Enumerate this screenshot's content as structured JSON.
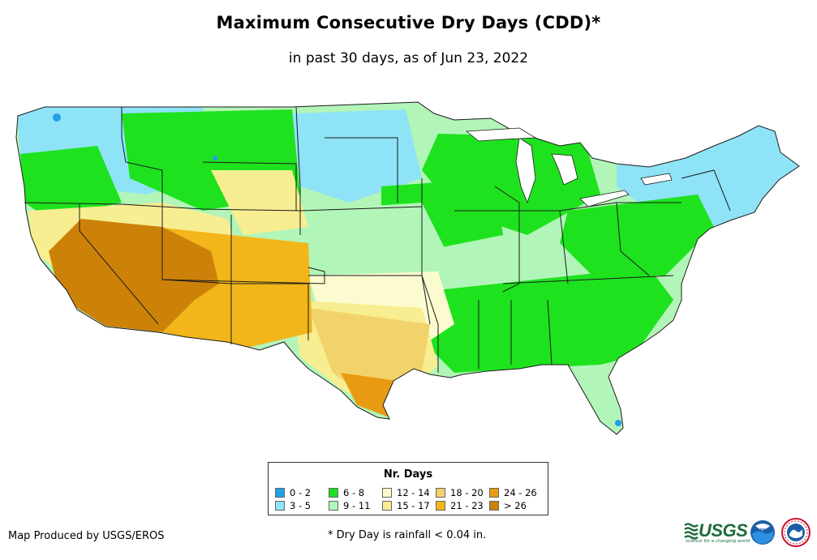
{
  "title": "Maximum Consecutive Dry Days (CDD)*",
  "subtitle": "in past 30 days, as of Jun 23, 2022",
  "map": {
    "region": "Contiguous United States",
    "layer": "Maximum consecutive dry days",
    "colors": {
      "c0_2": "#1f9fe8",
      "c3_5": "#8fe3f7",
      "c6_8": "#1ee21e",
      "c9_11": "#b2f5b8",
      "c12_14": "#fbfbcf",
      "c15_17": "#f7ee91",
      "c18_20": "#f2d36b",
      "c21_23": "#f2b61a",
      "c24_26": "#e89b12",
      "c26plus": "#cc8208",
      "border": "#1a1a1a"
    }
  },
  "legend": {
    "title": "Nr. Days",
    "items": [
      {
        "label": "0 - 2",
        "color": "#1f9fe8"
      },
      {
        "label": "6 - 8",
        "color": "#1ee21e"
      },
      {
        "label": "12 - 14",
        "color": "#fbfbcf"
      },
      {
        "label": "18 - 20",
        "color": "#f2d36b"
      },
      {
        "label": "24 - 26",
        "color": "#e89b12"
      },
      {
        "label": "3 - 5",
        "color": "#8fe3f7"
      },
      {
        "label": "9 - 11",
        "color": "#b2f5b8"
      },
      {
        "label": "15 - 17",
        "color": "#f7ee91"
      },
      {
        "label": "21 - 23",
        "color": "#f2b61a"
      },
      {
        "label": "> 26",
        "color": "#cc8208"
      }
    ]
  },
  "footer": {
    "credit": "Map Produced by USGS/EROS",
    "footnote": "* Dry Day is rainfall < 0.04 in."
  },
  "logos": {
    "usgs": "USGS",
    "usgs_tagline": "science for a changing world",
    "noaa": "noaa"
  }
}
